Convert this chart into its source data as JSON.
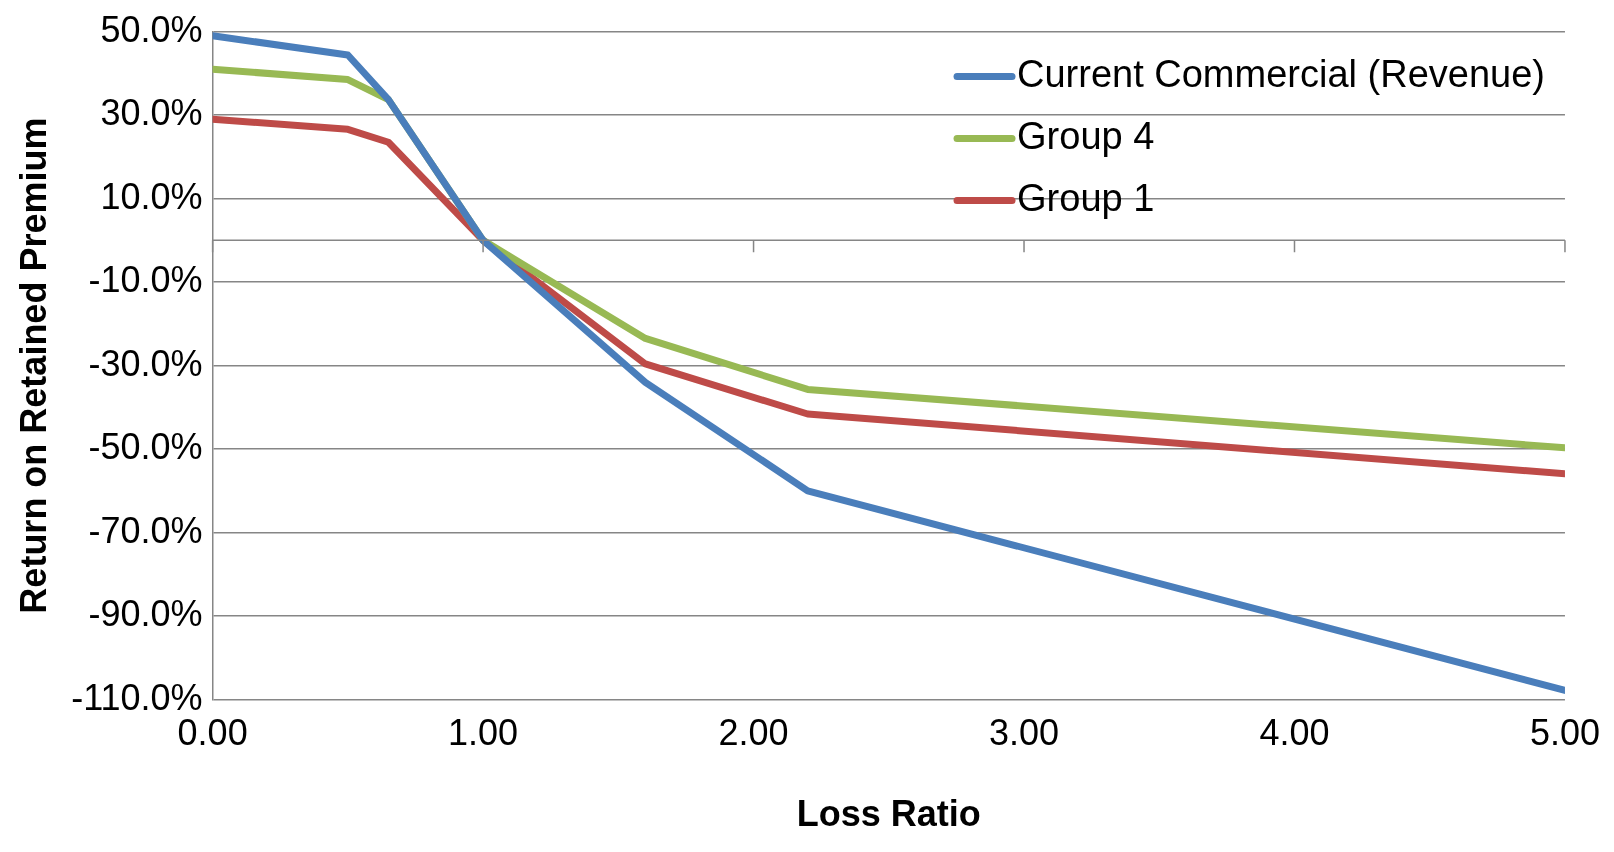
{
  "chart_data": {
    "type": "line",
    "xlabel": "Loss Ratio",
    "ylabel": "Return on Retained Premium",
    "x": [
      0,
      0.5,
      0.65,
      1,
      1.6,
      2.2,
      5
    ],
    "series": [
      {
        "name": "Current Commercial (Revenue)",
        "color": "#4a7ebb",
        "values": [
          49,
          44.4,
          33.7,
          0,
          -34,
          -60,
          -107.8
        ]
      },
      {
        "name": "Group 4",
        "color": "#98b954",
        "values": [
          41,
          38.5,
          33.7,
          0,
          -23.5,
          -35.7,
          -49.7
        ]
      },
      {
        "name": "Group 1",
        "color": "#be4b48",
        "values": [
          29,
          26.6,
          23.5,
          0,
          -29.6,
          -41.6,
          -55.9
        ]
      }
    ],
    "xlim": [
      0,
      5
    ],
    "xticks": [
      {
        "value": 0,
        "label": "0.00"
      },
      {
        "value": 1,
        "label": "1.00"
      },
      {
        "value": 2,
        "label": "2.00"
      },
      {
        "value": 3,
        "label": "3.00"
      },
      {
        "value": 4,
        "label": "4.00"
      },
      {
        "value": 5,
        "label": "5.00"
      }
    ],
    "ylim": [
      -110,
      50
    ],
    "yticks": [
      {
        "value": -110,
        "label": "-110.0%"
      },
      {
        "value": -90,
        "label": "-90.0%"
      },
      {
        "value": -70,
        "label": "-70.0%"
      },
      {
        "value": -50,
        "label": "-50.0%"
      },
      {
        "value": -30,
        "label": "-30.0%"
      },
      {
        "value": -10,
        "label": "-10.0%"
      },
      {
        "value": 10,
        "label": "10.0%"
      },
      {
        "value": 30,
        "label": "30.0%"
      },
      {
        "value": 50,
        "label": "50.0%"
      }
    ],
    "grid": "y",
    "legend": "top right",
    "marker": "none",
    "line_style": "solid"
  }
}
